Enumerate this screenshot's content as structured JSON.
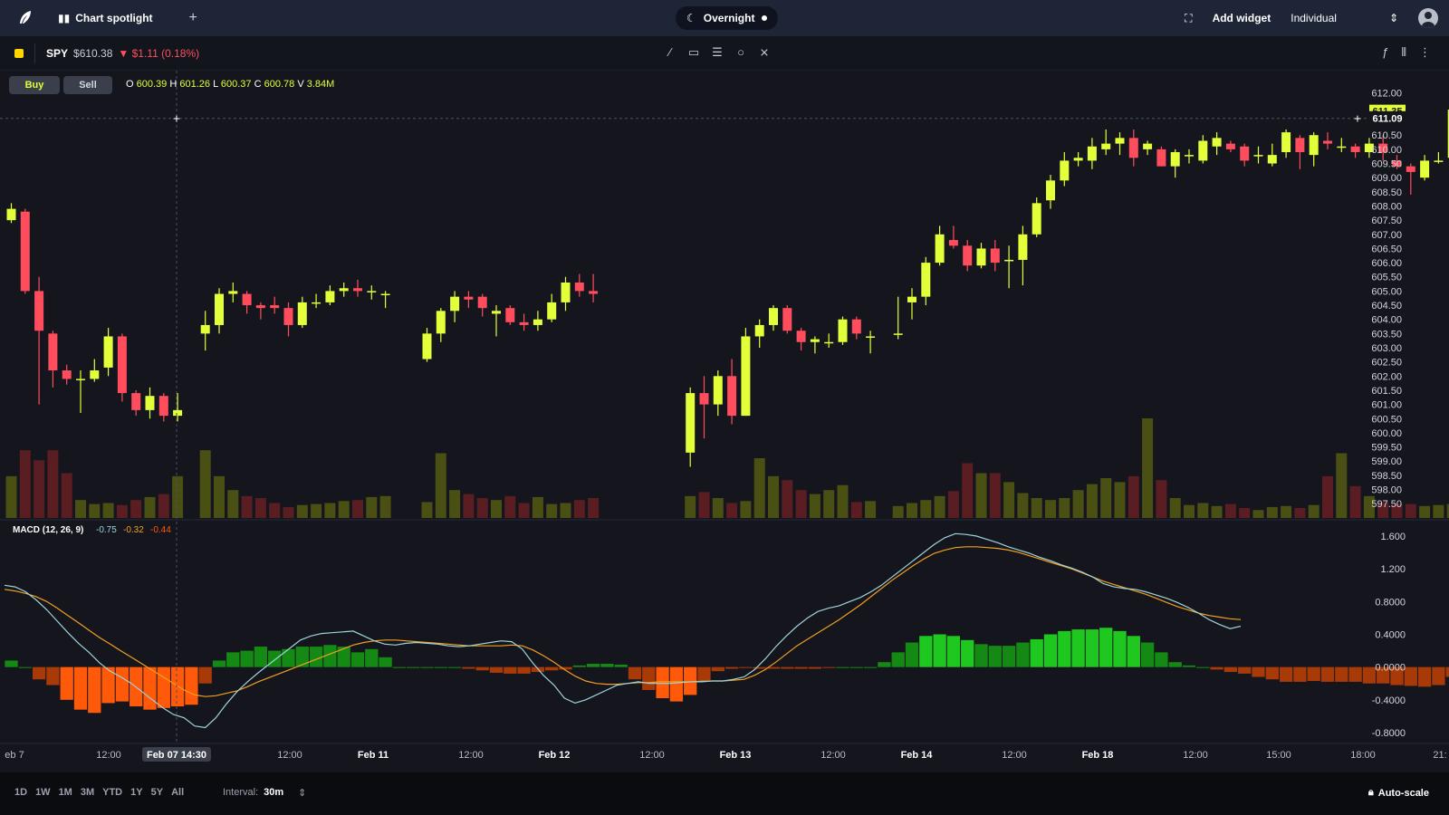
{
  "topbar": {
    "tab_label": "Chart spotlight",
    "session_label": "Overnight",
    "add_widget": "Add widget",
    "account": "Individual"
  },
  "symbol": {
    "ticker": "SPY",
    "price": "$610.38",
    "change": "$1.11 (0.18%)"
  },
  "trade": {
    "buy": "Buy",
    "sell": "Sell"
  },
  "ohlc": {
    "o_label": "O",
    "o": "600.39",
    "h_label": "H",
    "h": "601.26",
    "l_label": "L",
    "l": "600.37",
    "c_label": "C",
    "c": "600.78",
    "v_label": "V",
    "v": "3.84M"
  },
  "price_axis": {
    "ticks": [
      "612.00",
      "610.50",
      "610.00",
      "609.50",
      "609.00",
      "608.50",
      "608.00",
      "607.50",
      "607.00",
      "606.50",
      "606.00",
      "605.50",
      "605.00",
      "604.50",
      "604.00",
      "603.50",
      "603.00",
      "602.50",
      "602.00",
      "601.50",
      "601.00",
      "600.50",
      "600.00",
      "599.50",
      "599.00",
      "598.50",
      "598.00",
      "597.50"
    ],
    "crosshair_price": "611.09",
    "last_price": "611.35"
  },
  "macd": {
    "label": "MACD (12, 26, 9)",
    "macd_value": "-0.75",
    "signal_value": "-0.32",
    "hist_value": "-0.44",
    "ticks": [
      "1.600",
      "1.200",
      "0.8000",
      "0.4000",
      "0.0000",
      "-0.4000",
      "-0.8000"
    ]
  },
  "time_axis": {
    "labels": [
      "eb 7",
      "12:00",
      "12:00",
      "Feb 11",
      "12:00",
      "Feb 12",
      "12:00",
      "Feb 13",
      "12:00",
      "Feb 14",
      "12:00",
      "Feb 18",
      "12:00",
      "15:00",
      "18:00",
      "21:"
    ],
    "crosshair_time": "Feb 07 14:30"
  },
  "bottom": {
    "ranges": [
      "1D",
      "1W",
      "1M",
      "3M",
      "YTD",
      "1Y",
      "5Y",
      "All"
    ],
    "interval_label": "Interval:",
    "interval_value": "30m",
    "autoscale": "Auto-scale"
  },
  "colors": {
    "up": "#e2ff3a",
    "down": "#ff4d5e",
    "vol_up": "#4a5014",
    "vol_down": "#5a1d22",
    "macd_line": "#9fd3db",
    "signal_line": "#f0a020",
    "hist_pos": "#1ec81e",
    "hist_neg": "#ff5a0a"
  },
  "chart_data": {
    "type": "candlestick",
    "candles": [
      {
        "o": 607.5,
        "c": 607.9,
        "h": 608.1,
        "l": 607.4
      },
      {
        "o": 607.8,
        "c": 605.0,
        "h": 607.9,
        "l": 604.9
      },
      {
        "o": 605.0,
        "c": 603.6,
        "h": 605.5,
        "l": 601.0
      },
      {
        "o": 603.5,
        "c": 602.2,
        "h": 603.6,
        "l": 601.6
      },
      {
        "o": 602.2,
        "c": 601.9,
        "h": 602.4,
        "l": 601.7
      },
      {
        "o": 601.9,
        "c": 601.9,
        "h": 602.2,
        "l": 600.7
      },
      {
        "o": 601.9,
        "c": 602.2,
        "h": 602.6,
        "l": 601.8
      },
      {
        "o": 602.3,
        "c": 603.4,
        "h": 603.7,
        "l": 602.0
      },
      {
        "o": 603.4,
        "c": 601.4,
        "h": 603.5,
        "l": 601.1
      },
      {
        "o": 601.4,
        "c": 600.8,
        "h": 601.5,
        "l": 600.6
      },
      {
        "o": 600.8,
        "c": 601.3,
        "h": 601.6,
        "l": 600.5
      },
      {
        "o": 601.3,
        "c": 600.6,
        "h": 601.4,
        "l": 600.4
      },
      {
        "o": 600.6,
        "c": 600.8,
        "h": 601.4,
        "l": 600.4
      },
      null,
      {
        "o": 603.5,
        "c": 603.8,
        "h": 604.3,
        "l": 602.9
      },
      {
        "o": 603.8,
        "c": 604.9,
        "h": 605.1,
        "l": 603.5
      },
      {
        "o": 604.9,
        "c": 605.0,
        "h": 605.3,
        "l": 604.6
      },
      {
        "o": 604.9,
        "c": 604.5,
        "h": 605.0,
        "l": 604.2
      },
      {
        "o": 604.5,
        "c": 604.4,
        "h": 604.6,
        "l": 604.0
      },
      {
        "o": 604.5,
        "c": 604.4,
        "h": 604.8,
        "l": 604.2
      },
      {
        "o": 604.4,
        "c": 603.8,
        "h": 604.6,
        "l": 603.4
      },
      {
        "o": 603.8,
        "c": 604.6,
        "h": 604.8,
        "l": 603.7
      },
      {
        "o": 604.6,
        "c": 604.6,
        "h": 604.9,
        "l": 604.4
      },
      {
        "o": 604.6,
        "c": 605.0,
        "h": 605.2,
        "l": 604.5
      },
      {
        "o": 605.0,
        "c": 605.1,
        "h": 605.3,
        "l": 604.8
      },
      {
        "o": 605.1,
        "c": 605.0,
        "h": 605.4,
        "l": 604.8
      },
      {
        "o": 605.0,
        "c": 605.0,
        "h": 605.2,
        "l": 604.7
      },
      {
        "o": 604.9,
        "c": 604.9,
        "h": 605.0,
        "l": 604.4
      },
      null,
      null,
      {
        "o": 602.6,
        "c": 603.5,
        "h": 603.7,
        "l": 602.5
      },
      {
        "o": 603.5,
        "c": 604.3,
        "h": 604.4,
        "l": 603.2
      },
      {
        "o": 604.3,
        "c": 604.8,
        "h": 605.0,
        "l": 603.9
      },
      {
        "o": 604.8,
        "c": 604.7,
        "h": 605.0,
        "l": 604.4
      },
      {
        "o": 604.8,
        "c": 604.4,
        "h": 604.9,
        "l": 604.1
      },
      {
        "o": 604.2,
        "c": 604.3,
        "h": 604.5,
        "l": 603.4
      },
      {
        "o": 604.4,
        "c": 603.9,
        "h": 604.5,
        "l": 603.8
      },
      {
        "o": 603.9,
        "c": 603.8,
        "h": 604.2,
        "l": 603.6
      },
      {
        "o": 603.8,
        "c": 604.0,
        "h": 604.3,
        "l": 603.6
      },
      {
        "o": 604.0,
        "c": 604.6,
        "h": 604.9,
        "l": 603.9
      },
      {
        "o": 604.6,
        "c": 605.3,
        "h": 605.5,
        "l": 604.3
      },
      {
        "o": 605.3,
        "c": 605.0,
        "h": 605.6,
        "l": 604.8
      },
      {
        "o": 605.0,
        "c": 604.9,
        "h": 605.6,
        "l": 604.6
      },
      null,
      null,
      null,
      null,
      null,
      null,
      {
        "o": 599.3,
        "c": 601.4,
        "h": 601.6,
        "l": 598.8
      },
      {
        "o": 601.4,
        "c": 601.0,
        "h": 602.0,
        "l": 599.8
      },
      {
        "o": 601.0,
        "c": 602.0,
        "h": 602.2,
        "l": 600.6
      },
      {
        "o": 602.0,
        "c": 600.6,
        "h": 602.6,
        "l": 600.3
      },
      {
        "o": 600.6,
        "c": 603.4,
        "h": 603.7,
        "l": 600.6
      },
      {
        "o": 603.4,
        "c": 603.8,
        "h": 604.0,
        "l": 603.0
      },
      {
        "o": 603.8,
        "c": 604.4,
        "h": 604.5,
        "l": 603.6
      },
      {
        "o": 604.4,
        "c": 603.6,
        "h": 604.5,
        "l": 603.5
      },
      {
        "o": 603.6,
        "c": 603.2,
        "h": 603.7,
        "l": 602.9
      },
      {
        "o": 603.2,
        "c": 603.3,
        "h": 603.4,
        "l": 602.8
      },
      {
        "o": 603.2,
        "c": 603.2,
        "h": 603.5,
        "l": 603.0
      },
      {
        "o": 603.2,
        "c": 604.0,
        "h": 604.1,
        "l": 603.1
      },
      {
        "o": 604.0,
        "c": 603.5,
        "h": 604.1,
        "l": 603.3
      },
      {
        "o": 603.4,
        "c": 603.4,
        "h": 603.6,
        "l": 602.8
      },
      null,
      {
        "o": 603.5,
        "c": 603.5,
        "h": 604.8,
        "l": 603.3
      },
      {
        "o": 604.6,
        "c": 604.8,
        "h": 605.1,
        "l": 604.0
      },
      {
        "o": 604.8,
        "c": 606.0,
        "h": 606.2,
        "l": 604.5
      },
      {
        "o": 606.0,
        "c": 607.0,
        "h": 607.3,
        "l": 605.9
      },
      {
        "o": 606.8,
        "c": 606.6,
        "h": 607.3,
        "l": 606.5
      },
      {
        "o": 606.6,
        "c": 605.9,
        "h": 606.8,
        "l": 605.7
      },
      {
        "o": 605.9,
        "c": 606.5,
        "h": 606.7,
        "l": 605.8
      },
      {
        "o": 606.5,
        "c": 606.0,
        "h": 606.8,
        "l": 605.7
      },
      {
        "o": 606.1,
        "c": 606.1,
        "h": 606.6,
        "l": 605.1
      },
      {
        "o": 606.1,
        "c": 607.0,
        "h": 607.3,
        "l": 605.2
      },
      {
        "o": 607.0,
        "c": 608.1,
        "h": 608.3,
        "l": 606.9
      },
      {
        "o": 608.2,
        "c": 608.9,
        "h": 609.1,
        "l": 607.9
      },
      {
        "o": 608.9,
        "c": 609.6,
        "h": 609.9,
        "l": 608.7
      },
      {
        "o": 609.6,
        "c": 609.7,
        "h": 609.9,
        "l": 609.4
      },
      {
        "o": 609.6,
        "c": 610.1,
        "h": 610.4,
        "l": 609.3
      },
      {
        "o": 610.0,
        "c": 610.2,
        "h": 610.7,
        "l": 609.8
      },
      {
        "o": 610.2,
        "c": 610.4,
        "h": 610.6,
        "l": 609.8
      },
      {
        "o": 610.4,
        "c": 609.7,
        "h": 610.7,
        "l": 609.4
      },
      {
        "o": 610.0,
        "c": 610.2,
        "h": 610.3,
        "l": 609.8
      },
      {
        "o": 610.0,
        "c": 609.4,
        "h": 610.1,
        "l": 609.4
      },
      {
        "o": 609.4,
        "c": 609.9,
        "h": 610.0,
        "l": 609.0
      },
      {
        "o": 609.8,
        "c": 609.8,
        "h": 610.0,
        "l": 609.5
      },
      {
        "o": 609.6,
        "c": 610.3,
        "h": 610.5,
        "l": 609.5
      },
      {
        "o": 610.1,
        "c": 610.4,
        "h": 610.6,
        "l": 609.8
      },
      {
        "o": 610.2,
        "c": 610.0,
        "h": 610.3,
        "l": 609.9
      },
      {
        "o": 610.1,
        "c": 609.6,
        "h": 610.2,
        "l": 609.4
      },
      {
        "o": 609.8,
        "c": 609.8,
        "h": 610.1,
        "l": 609.5
      },
      {
        "o": 609.5,
        "c": 609.8,
        "h": 610.2,
        "l": 609.4
      },
      {
        "o": 609.9,
        "c": 610.6,
        "h": 610.7,
        "l": 609.7
      },
      {
        "o": 610.4,
        "c": 609.9,
        "h": 610.5,
        "l": 609.3
      },
      {
        "o": 609.8,
        "c": 610.5,
        "h": 610.6,
        "l": 609.4
      },
      {
        "o": 610.3,
        "c": 610.2,
        "h": 610.6,
        "l": 610.0
      },
      {
        "o": 610.1,
        "c": 610.1,
        "h": 610.4,
        "l": 609.9
      },
      {
        "o": 610.1,
        "c": 609.9,
        "h": 610.2,
        "l": 609.7
      },
      {
        "o": 609.9,
        "c": 610.2,
        "h": 610.4,
        "l": 609.7
      },
      {
        "o": 610.2,
        "c": 609.9,
        "h": 610.5,
        "l": 609.6
      },
      {
        "o": 609.6,
        "c": 609.4,
        "h": 609.8,
        "l": 609.3
      },
      {
        "o": 609.4,
        "c": 609.2,
        "h": 609.5,
        "l": 608.4
      },
      {
        "o": 609.0,
        "c": 609.6,
        "h": 609.8,
        "l": 608.9
      },
      {
        "o": 609.6,
        "c": 609.6,
        "h": 609.9,
        "l": 609.5
      },
      {
        "o": 609.7,
        "c": 611.4,
        "h": 611.5,
        "l": 609.6
      }
    ],
    "volume": [
      42,
      68,
      58,
      68,
      45,
      18,
      14,
      15,
      13,
      18,
      21,
      24,
      42,
      68,
      42,
      28,
      22,
      20,
      15,
      11,
      13,
      14,
      15,
      17,
      18,
      21,
      22,
      16,
      65,
      28,
      24,
      20,
      18,
      22,
      15,
      21,
      14,
      15,
      18,
      20,
      22,
      26,
      20,
      15,
      17,
      60,
      42,
      38,
      28,
      24,
      28,
      33,
      16,
      17,
      12,
      15,
      18,
      22,
      27,
      55,
      45,
      45,
      36,
      25,
      20,
      18,
      20,
      28,
      34,
      40,
      36,
      42,
      100,
      38,
      20,
      13,
      15,
      12,
      14,
      10,
      8,
      11,
      12,
      10,
      13,
      42,
      65,
      32,
      22,
      16,
      14,
      14,
      12,
      13,
      14,
      11,
      21,
      18,
      16,
      45
    ],
    "macd": [
      1.0,
      0.98,
      0.92,
      0.82,
      0.7,
      0.56,
      0.42,
      0.29,
      0.18,
      0.05,
      -0.05,
      -0.12,
      -0.2,
      -0.3,
      -0.4,
      -0.5,
      -0.58,
      -0.62,
      -0.72,
      -0.74,
      -0.62,
      -0.45,
      -0.3,
      -0.18,
      -0.07,
      0.03,
      0.13,
      0.23,
      0.33,
      0.38,
      0.41,
      0.42,
      0.43,
      0.44,
      0.38,
      0.32,
      0.28,
      0.27,
      0.29,
      0.3,
      0.29,
      0.28,
      0.26,
      0.25,
      0.26,
      0.28,
      0.3,
      0.32,
      0.31,
      0.22,
      0.05,
      -0.1,
      -0.22,
      -0.38,
      -0.44,
      -0.4,
      -0.34,
      -0.28,
      -0.22,
      -0.2,
      -0.18,
      -0.2,
      -0.2,
      -0.2,
      -0.19,
      -0.18,
      -0.18,
      -0.17,
      -0.17,
      -0.15,
      -0.12,
      -0.03,
      0.1,
      0.25,
      0.38,
      0.5,
      0.6,
      0.68,
      0.72,
      0.75,
      0.8,
      0.85,
      0.92,
      1.0,
      1.1,
      1.2,
      1.3,
      1.4,
      1.5,
      1.58,
      1.63,
      1.62,
      1.6,
      1.56,
      1.52,
      1.47,
      1.43,
      1.39,
      1.34,
      1.3,
      1.25,
      1.21,
      1.16,
      1.1,
      1.02,
      0.98,
      0.96,
      0.95,
      0.92,
      0.88,
      0.84,
      0.79,
      0.73,
      0.66,
      0.58,
      0.52,
      0.47,
      0.5
    ],
    "signal": [
      0.95,
      0.93,
      0.9,
      0.86,
      0.8,
      0.72,
      0.63,
      0.54,
      0.45,
      0.36,
      0.28,
      0.2,
      0.12,
      0.04,
      -0.04,
      -0.12,
      -0.2,
      -0.28,
      -0.34,
      -0.36,
      -0.35,
      -0.32,
      -0.29,
      -0.24,
      -0.18,
      -0.13,
      -0.08,
      -0.03,
      0.02,
      0.07,
      0.12,
      0.17,
      0.22,
      0.27,
      0.3,
      0.32,
      0.33,
      0.33,
      0.32,
      0.31,
      0.3,
      0.29,
      0.28,
      0.27,
      0.26,
      0.26,
      0.26,
      0.26,
      0.27,
      0.26,
      0.21,
      0.14,
      0.06,
      -0.03,
      -0.11,
      -0.17,
      -0.2,
      -0.21,
      -0.21,
      -0.2,
      -0.19,
      -0.19,
      -0.18,
      -0.18,
      -0.18,
      -0.18,
      -0.17,
      -0.17,
      -0.17,
      -0.16,
      -0.15,
      -0.1,
      -0.03,
      0.06,
      0.16,
      0.26,
      0.34,
      0.42,
      0.5,
      0.58,
      0.67,
      0.76,
      0.86,
      0.96,
      1.06,
      1.15,
      1.24,
      1.32,
      1.39,
      1.43,
      1.46,
      1.47,
      1.47,
      1.46,
      1.45,
      1.43,
      1.4,
      1.36,
      1.32,
      1.28,
      1.24,
      1.2,
      1.15,
      1.1,
      1.05,
      1.01,
      0.97,
      0.93,
      0.89,
      0.84,
      0.79,
      0.74,
      0.7,
      0.66,
      0.63,
      0.61,
      0.59,
      0.58
    ],
    "hist": [
      0.08,
      0.0,
      -0.15,
      -0.22,
      -0.4,
      -0.52,
      -0.56,
      -0.44,
      -0.42,
      -0.48,
      -0.52,
      -0.5,
      -0.48,
      -0.46,
      -0.2,
      0.08,
      0.18,
      0.2,
      0.25,
      0.2,
      0.22,
      0.25,
      0.25,
      0.27,
      0.25,
      0.18,
      0.22,
      0.12,
      0.0,
      0.0,
      0.0,
      0.0,
      0.0,
      -0.02,
      -0.04,
      -0.07,
      -0.08,
      -0.08,
      -0.06,
      -0.04,
      -0.03,
      0.02,
      0.04,
      0.04,
      0.03,
      -0.15,
      -0.28,
      -0.38,
      -0.42,
      -0.34,
      -0.16,
      -0.05,
      -0.02,
      -0.01,
      -0.02,
      -0.02,
      -0.02,
      -0.02,
      -0.02,
      -0.01,
      0.0,
      0.0,
      0.0,
      0.06,
      0.18,
      0.3,
      0.38,
      0.4,
      0.38,
      0.33,
      0.28,
      0.26,
      0.26,
      0.3,
      0.34,
      0.4,
      0.44,
      0.46,
      0.46,
      0.48,
      0.44,
      0.38,
      0.3,
      0.18,
      0.06,
      0.02,
      0.0,
      -0.03,
      -0.06,
      -0.08,
      -0.12,
      -0.15,
      -0.18,
      -0.18,
      -0.17,
      -0.18,
      -0.18,
      -0.18,
      -0.2,
      -0.2,
      -0.22,
      -0.23,
      -0.24,
      -0.22,
      -0.12
    ],
    "y_range_price": [
      597.25,
      612.2
    ],
    "y_range_macd": [
      -0.9,
      1.7
    ]
  }
}
